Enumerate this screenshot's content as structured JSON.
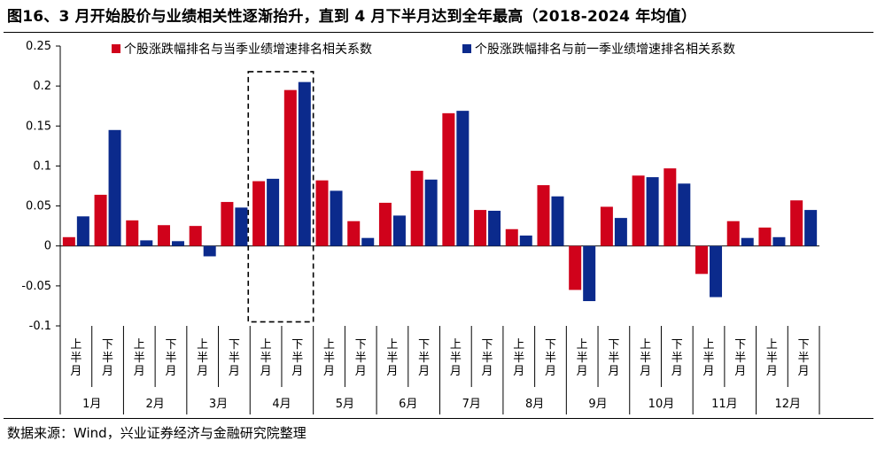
{
  "title": "图16、3 月开始股价与业绩相关性逐渐抬升，直到 4 月下半月达到全年最高（2018-2024 年均值）",
  "source": "数据来源：Wind，兴业证券经济与金融研究院整理",
  "colors": {
    "series1": "#d0021b",
    "series2": "#0b2a8c"
  },
  "chart_data": {
    "type": "bar",
    "title": "图16、3 月开始股价与业绩相关性逐渐抬升，直到 4 月下半月达到全年最高（2018-2024 年均值）",
    "half_labels": [
      "上半月",
      "下半月"
    ],
    "months": [
      "1月",
      "2月",
      "3月",
      "4月",
      "5月",
      "6月",
      "7月",
      "8月",
      "9月",
      "10月",
      "11月",
      "12月"
    ],
    "categories": [
      "1月上半月",
      "1月下半月",
      "2月上半月",
      "2月下半月",
      "3月上半月",
      "3月下半月",
      "4月上半月",
      "4月下半月",
      "5月上半月",
      "5月下半月",
      "6月上半月",
      "6月下半月",
      "7月上半月",
      "7月下半月",
      "8月上半月",
      "8月下半月",
      "9月上半月",
      "9月下半月",
      "10月上半月",
      "10月下半月",
      "11月上半月",
      "11月下半月",
      "12月上半月",
      "12月下半月"
    ],
    "series": [
      {
        "name": "个股涨跌幅排名与当季业绩增速排名相关系数",
        "values": [
          0.011,
          0.064,
          0.032,
          0.026,
          0.025,
          0.055,
          0.081,
          0.195,
          0.082,
          0.031,
          0.054,
          0.094,
          0.166,
          0.045,
          0.021,
          0.076,
          -0.055,
          0.049,
          0.088,
          0.097,
          -0.035,
          0.031,
          0.023,
          0.057
        ]
      },
      {
        "name": "个股涨跌幅排名与前一季业绩增速排名相关系数",
        "values": [
          0.037,
          0.145,
          0.007,
          0.006,
          -0.013,
          0.048,
          0.084,
          0.205,
          0.069,
          0.01,
          0.038,
          0.083,
          0.169,
          0.044,
          0.013,
          0.062,
          -0.069,
          0.035,
          0.086,
          0.078,
          -0.064,
          0.01,
          0.011,
          0.045
        ]
      }
    ],
    "yticks": [
      "0.25",
      "0.2",
      "0.15",
      "0.1",
      "0.05",
      "0",
      "-0.05",
      "-0.1"
    ],
    "ylim": [
      -0.1,
      0.25
    ],
    "legend": "top",
    "grid": false,
    "highlight": "4月 (dashed box)"
  }
}
